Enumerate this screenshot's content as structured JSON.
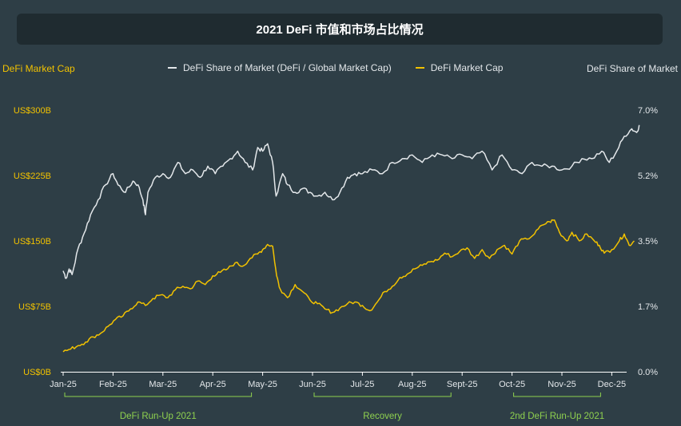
{
  "title": "2021 DeFi 市值和市场占比情况",
  "left_axis_title": "DeFi Market Cap",
  "right_axis_title": "DeFi Share of Market",
  "legend": {
    "share_label": "DeFi Share of Market (DeFi / Global Market Cap)",
    "cap_label": "DeFi Market Cap"
  },
  "colors": {
    "background": "#2e3e46",
    "title_bar": "#1f2b30",
    "share_line": "#e3e7ea",
    "cap_line": "#f2c200",
    "bracket": "#8fd14f"
  },
  "chart_data": {
    "type": "line",
    "x_categories": [
      "Jan-25",
      "Feb-25",
      "Mar-25",
      "Apr-25",
      "May-25",
      "Jun-25",
      "Jul-25",
      "Aug-25",
      "Sept-25",
      "Oct-25",
      "Nov-25",
      "Dec-25"
    ],
    "left_axis": {
      "label": "DeFi Market Cap",
      "ticks": [
        "US$0B",
        "US$75B",
        "US$150B",
        "US$225B",
        "US$300B"
      ],
      "range": [
        0,
        300
      ]
    },
    "right_axis": {
      "label": "DeFi Share of Market",
      "ticks": [
        "0.0%",
        "1.7%",
        "3.5%",
        "5.2%",
        "7.0%"
      ],
      "range": [
        0,
        7
      ]
    },
    "series": [
      {
        "name": "DeFi Share of Market (DeFi / Global Market Cap)",
        "axis": "right",
        "points": [
          [
            0.0,
            2.7
          ],
          [
            0.06,
            2.5
          ],
          [
            0.12,
            2.75
          ],
          [
            0.18,
            2.6
          ],
          [
            0.3,
            3.3
          ],
          [
            0.42,
            3.7
          ],
          [
            0.55,
            4.2
          ],
          [
            0.7,
            4.6
          ],
          [
            0.85,
            5.0
          ],
          [
            1.0,
            5.3
          ],
          [
            1.1,
            5.0
          ],
          [
            1.25,
            4.8
          ],
          [
            1.4,
            5.1
          ],
          [
            1.5,
            5.0
          ],
          [
            1.6,
            4.6
          ],
          [
            1.65,
            4.2
          ],
          [
            1.7,
            4.8
          ],
          [
            1.85,
            5.2
          ],
          [
            2.0,
            5.3
          ],
          [
            2.15,
            5.2
          ],
          [
            2.3,
            5.6
          ],
          [
            2.45,
            5.3
          ],
          [
            2.6,
            5.4
          ],
          [
            2.75,
            5.2
          ],
          [
            2.9,
            5.5
          ],
          [
            3.05,
            5.3
          ],
          [
            3.2,
            5.5
          ],
          [
            3.35,
            5.7
          ],
          [
            3.5,
            5.9
          ],
          [
            3.65,
            5.6
          ],
          [
            3.8,
            5.4
          ],
          [
            3.9,
            6.0
          ],
          [
            4.0,
            5.9
          ],
          [
            4.1,
            6.1
          ],
          [
            4.2,
            5.6
          ],
          [
            4.27,
            4.7
          ],
          [
            4.4,
            5.3
          ],
          [
            4.5,
            5.0
          ],
          [
            4.65,
            4.8
          ],
          [
            4.8,
            4.9
          ],
          [
            4.95,
            4.8
          ],
          [
            5.1,
            4.7
          ],
          [
            5.25,
            4.8
          ],
          [
            5.4,
            4.6
          ],
          [
            5.55,
            4.8
          ],
          [
            5.7,
            5.2
          ],
          [
            5.85,
            5.3
          ],
          [
            6.0,
            5.3
          ],
          [
            6.2,
            5.4
          ],
          [
            6.4,
            5.3
          ],
          [
            6.6,
            5.6
          ],
          [
            6.8,
            5.7
          ],
          [
            7.0,
            5.8
          ],
          [
            7.2,
            5.6
          ],
          [
            7.4,
            5.8
          ],
          [
            7.6,
            5.8
          ],
          [
            7.8,
            5.7
          ],
          [
            8.0,
            5.8
          ],
          [
            8.2,
            5.7
          ],
          [
            8.4,
            5.9
          ],
          [
            8.6,
            5.4
          ],
          [
            8.8,
            5.8
          ],
          [
            9.0,
            5.4
          ],
          [
            9.2,
            5.3
          ],
          [
            9.4,
            5.6
          ],
          [
            9.6,
            5.5
          ],
          [
            9.8,
            5.5
          ],
          [
            10.0,
            5.4
          ],
          [
            10.2,
            5.5
          ],
          [
            10.4,
            5.7
          ],
          [
            10.6,
            5.7
          ],
          [
            10.8,
            5.9
          ],
          [
            10.95,
            5.6
          ],
          [
            11.1,
            5.9
          ],
          [
            11.25,
            6.3
          ],
          [
            11.4,
            6.5
          ],
          [
            11.5,
            6.4
          ],
          [
            11.55,
            6.6
          ]
        ]
      },
      {
        "name": "DeFi Market Cap",
        "axis": "left",
        "points": [
          [
            0.0,
            23
          ],
          [
            0.15,
            26
          ],
          [
            0.3,
            30
          ],
          [
            0.45,
            34
          ],
          [
            0.6,
            40
          ],
          [
            0.75,
            44
          ],
          [
            0.9,
            52
          ],
          [
            1.05,
            60
          ],
          [
            1.2,
            64
          ],
          [
            1.35,
            72
          ],
          [
            1.5,
            80
          ],
          [
            1.65,
            76
          ],
          [
            1.8,
            84
          ],
          [
            1.95,
            88
          ],
          [
            2.1,
            85
          ],
          [
            2.25,
            94
          ],
          [
            2.4,
            98
          ],
          [
            2.55,
            95
          ],
          [
            2.7,
            104
          ],
          [
            2.85,
            100
          ],
          [
            3.0,
            110
          ],
          [
            3.15,
            114
          ],
          [
            3.3,
            118
          ],
          [
            3.45,
            125
          ],
          [
            3.6,
            121
          ],
          [
            3.75,
            130
          ],
          [
            3.9,
            135
          ],
          [
            4.0,
            140
          ],
          [
            4.1,
            146
          ],
          [
            4.2,
            144
          ],
          [
            4.28,
            110
          ],
          [
            4.35,
            95
          ],
          [
            4.5,
            85
          ],
          [
            4.65,
            100
          ],
          [
            4.8,
            92
          ],
          [
            4.95,
            82
          ],
          [
            5.1,
            78
          ],
          [
            5.25,
            72
          ],
          [
            5.4,
            68
          ],
          [
            5.55,
            73
          ],
          [
            5.7,
            78
          ],
          [
            5.85,
            80
          ],
          [
            6.0,
            76
          ],
          [
            6.15,
            70
          ],
          [
            6.3,
            80
          ],
          [
            6.45,
            92
          ],
          [
            6.6,
            98
          ],
          [
            6.75,
            108
          ],
          [
            6.9,
            112
          ],
          [
            7.05,
            118
          ],
          [
            7.2,
            122
          ],
          [
            7.35,
            126
          ],
          [
            7.5,
            128
          ],
          [
            7.65,
            136
          ],
          [
            7.8,
            132
          ],
          [
            7.95,
            138
          ],
          [
            8.1,
            142
          ],
          [
            8.25,
            130
          ],
          [
            8.4,
            140
          ],
          [
            8.55,
            130
          ],
          [
            8.7,
            140
          ],
          [
            8.85,
            145
          ],
          [
            9.0,
            135
          ],
          [
            9.15,
            150
          ],
          [
            9.3,
            152
          ],
          [
            9.45,
            158
          ],
          [
            9.6,
            168
          ],
          [
            9.75,
            172
          ],
          [
            9.85,
            174
          ],
          [
            9.95,
            160
          ],
          [
            10.1,
            150
          ],
          [
            10.2,
            160
          ],
          [
            10.35,
            150
          ],
          [
            10.5,
            158
          ],
          [
            10.65,
            150
          ],
          [
            10.75,
            145
          ],
          [
            10.85,
            136
          ],
          [
            11.0,
            140
          ],
          [
            11.15,
            150
          ],
          [
            11.25,
            158
          ],
          [
            11.35,
            145
          ],
          [
            11.45,
            150
          ]
        ]
      }
    ],
    "annotations": [
      {
        "label": "DeFi Run-Up 2021",
        "from": "Jan-25",
        "to": "May-25"
      },
      {
        "label": "Recovery",
        "from": "Jun-25",
        "to": "Sept-25"
      },
      {
        "label": "2nd DeFi Run-Up 2021",
        "from": "Oct-25",
        "to": "Dec-25"
      }
    ],
    "grid": false,
    "legend_position": "top-center"
  }
}
